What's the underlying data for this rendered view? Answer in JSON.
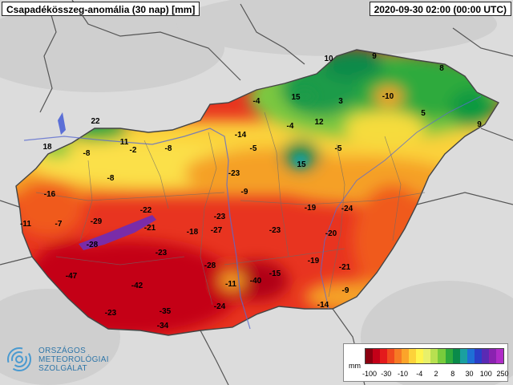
{
  "header": {
    "title": "Csapadékösszeg-anomália (30 nap) [mm]",
    "datetime": "2020-09-30 02:00 (00:00 UTC)"
  },
  "logo": {
    "line1": "ORSZÁGOS",
    "line2": "METEOROLÓGIAI",
    "line3": "SZOLGÁLAT"
  },
  "legend": {
    "unit": "mm",
    "ticks": [
      "-100",
      "-30",
      "-10",
      "-4",
      "2",
      "8",
      "30",
      "100",
      "250"
    ],
    "colors": [
      "#8b0010",
      "#c40018",
      "#e41a1c",
      "#f04a1e",
      "#f67a24",
      "#fba42a",
      "#fdd23a",
      "#fff44c",
      "#e8f06a",
      "#b8e050",
      "#78cc3c",
      "#2eaa3c",
      "#0a8a4a",
      "#1aa0a0",
      "#1e6fd6",
      "#2a3fc8",
      "#5a2ab4",
      "#8a22b0",
      "#b02cc8"
    ]
  },
  "colors": {
    "background": "#d8d8d8",
    "border": "#555555",
    "lake": "#5b6fd6"
  },
  "values": [
    {
      "name": "val-22",
      "label": "22",
      "pos": [
        119,
        151
      ]
    },
    {
      "name": "val-18",
      "label": "18",
      "pos": [
        59,
        183
      ]
    },
    {
      "name": "val-11-north",
      "label": "11",
      "pos": [
        155,
        177
      ]
    },
    {
      "name": "val--2",
      "label": "-2",
      "pos": [
        166,
        187
      ]
    },
    {
      "name": "val--8-west",
      "label": "-8",
      "pos": [
        108,
        191
      ]
    },
    {
      "name": "val--8-center",
      "label": "-8",
      "pos": [
        210,
        185
      ]
    },
    {
      "name": "val--8-south",
      "label": "-8",
      "pos": [
        138,
        222
      ]
    },
    {
      "name": "val--4-north",
      "label": "-4",
      "pos": [
        320,
        126
      ]
    },
    {
      "name": "val--14",
      "label": "-14",
      "pos": [
        300,
        168
      ]
    },
    {
      "name": "val--5-center",
      "label": "-5",
      "pos": [
        316,
        185
      ]
    },
    {
      "name": "val--23-bp",
      "label": "-23",
      "pos": [
        292,
        216
      ]
    },
    {
      "name": "val--9-center",
      "label": "-9",
      "pos": [
        305,
        239
      ]
    },
    {
      "name": "val-15-north",
      "label": "15",
      "pos": [
        369,
        121
      ]
    },
    {
      "name": "val-3",
      "label": "3",
      "pos": [
        425,
        126
      ]
    },
    {
      "name": "val-10",
      "label": "10",
      "pos": [
        410,
        73
      ]
    },
    {
      "name": "val-9-north",
      "label": "9",
      "pos": [
        467,
        70
      ]
    },
    {
      "name": "val-8-east",
      "label": "8",
      "pos": [
        551,
        85
      ]
    },
    {
      "name": "val--10",
      "label": "-10",
      "pos": [
        484,
        120
      ]
    },
    {
      "name": "val-5",
      "label": "5",
      "pos": [
        528,
        141
      ]
    },
    {
      "name": "val-9-east",
      "label": "9",
      "pos": [
        598,
        155
      ]
    },
    {
      "name": "val--4-center",
      "label": "-4",
      "pos": [
        362,
        157
      ]
    },
    {
      "name": "val-12",
      "label": "12",
      "pos": [
        398,
        152
      ]
    },
    {
      "name": "val--5-east",
      "label": "-5",
      "pos": [
        422,
        185
      ]
    },
    {
      "name": "val-15-center",
      "label": "15",
      "pos": [
        376,
        205
      ]
    },
    {
      "name": "val--16",
      "label": "-16",
      "pos": [
        62,
        242
      ]
    },
    {
      "name": "val--11-west",
      "label": "-11",
      "pos": [
        32,
        279
      ]
    },
    {
      "name": "val--7",
      "label": "-7",
      "pos": [
        73,
        279
      ]
    },
    {
      "name": "val--29",
      "label": "-29",
      "pos": [
        120,
        276
      ]
    },
    {
      "name": "val--22",
      "label": "-22",
      "pos": [
        182,
        262
      ]
    },
    {
      "name": "val--21-west",
      "label": "-21",
      "pos": [
        187,
        284
      ]
    },
    {
      "name": "val--28-west",
      "label": "-28",
      "pos": [
        115,
        305
      ]
    },
    {
      "name": "val--18",
      "label": "-18",
      "pos": [
        240,
        289
      ]
    },
    {
      "name": "val--23-a",
      "label": "-23",
      "pos": [
        274,
        270
      ]
    },
    {
      "name": "val--27",
      "label": "-27",
      "pos": [
        270,
        287
      ]
    },
    {
      "name": "val--23-b",
      "label": "-23",
      "pos": [
        343,
        287
      ]
    },
    {
      "name": "val--19-north",
      "label": "-19",
      "pos": [
        387,
        259
      ]
    },
    {
      "name": "val--24-east",
      "label": "-24",
      "pos": [
        433,
        260
      ]
    },
    {
      "name": "val--20",
      "label": "-20",
      "pos": [
        413,
        291
      ]
    },
    {
      "name": "val--47",
      "label": "-47",
      "pos": [
        89,
        344
      ]
    },
    {
      "name": "val--23-c",
      "label": "-23",
      "pos": [
        201,
        315
      ]
    },
    {
      "name": "val--42",
      "label": "-42",
      "pos": [
        171,
        356
      ]
    },
    {
      "name": "val--28-center",
      "label": "-28",
      "pos": [
        262,
        331
      ]
    },
    {
      "name": "val--19-south",
      "label": "-19",
      "pos": [
        391,
        325
      ]
    },
    {
      "name": "val--21-east",
      "label": "-21",
      "pos": [
        430,
        333
      ]
    },
    {
      "name": "val--15",
      "label": "-15",
      "pos": [
        343,
        341
      ]
    },
    {
      "name": "val--11-center",
      "label": "-11",
      "pos": [
        288,
        354
      ]
    },
    {
      "name": "val--40",
      "label": "-40",
      "pos": [
        319,
        350
      ]
    },
    {
      "name": "val--9-south",
      "label": "-9",
      "pos": [
        431,
        362
      ]
    },
    {
      "name": "val--23-sw",
      "label": "-23",
      "pos": [
        138,
        390
      ]
    },
    {
      "name": "val--35",
      "label": "-35",
      "pos": [
        206,
        388
      ]
    },
    {
      "name": "val--24-south",
      "label": "-24",
      "pos": [
        274,
        382
      ]
    },
    {
      "name": "val--34",
      "label": "-34",
      "pos": [
        203,
        406
      ]
    },
    {
      "name": "val--14-south",
      "label": "-14",
      "pos": [
        403,
        380
      ]
    }
  ]
}
